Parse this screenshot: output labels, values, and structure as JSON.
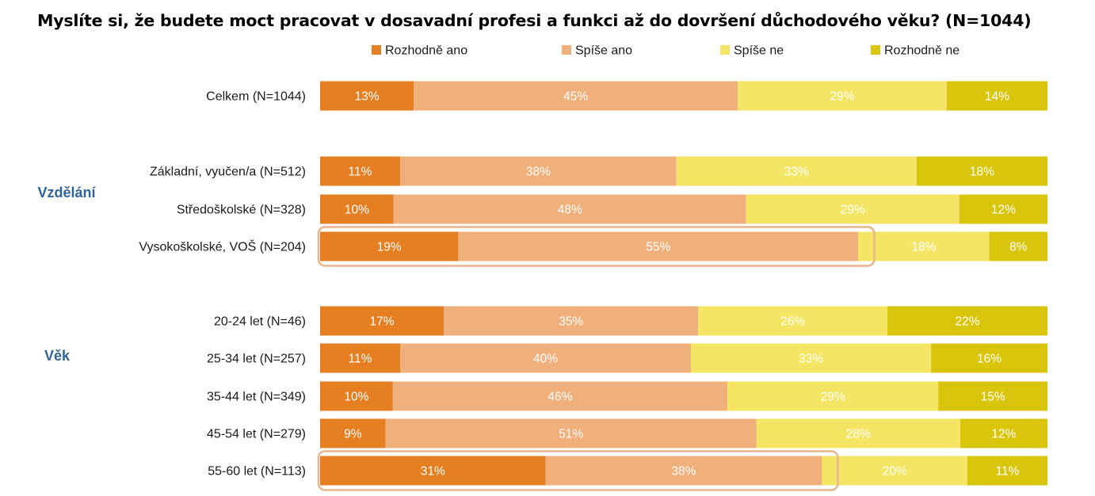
{
  "chart_data": {
    "type": "bar",
    "orientation": "horizontal",
    "stacked": true,
    "percent_stacked": true,
    "title": "Myslíte si, že budete moct pracovat v dosavadní profesi a funkci až do dovršení důchodového věku? (N=1044)",
    "legend_position": "top",
    "grid": false,
    "categories": [
      "Celkem (N=1044)",
      "Základní, vyučen/a (N=512)",
      "Středoškolské (N=328)",
      "Vysokoškolské, VOŠ (N=204)",
      "20-24 let (N=46)",
      "25-34 let (N=257)",
      "35-44 let (N=349)",
      "45-54 let (N=279)",
      "55-60 let (N=113)"
    ],
    "groups": [
      {
        "label": "Vzdělání",
        "categories": [
          1,
          2,
          3
        ]
      },
      {
        "label": "Věk",
        "categories": [
          4,
          5,
          6,
          7,
          8
        ]
      }
    ],
    "series": [
      {
        "name": "Rozhodně ano",
        "color": "#e67e22",
        "label_color": "#ffffff",
        "values": [
          13,
          11,
          10,
          19,
          17,
          11,
          10,
          9,
          31
        ]
      },
      {
        "name": "Spíše ano",
        "color": "#f0b07c",
        "label_color": "#ffffff",
        "values": [
          45,
          38,
          48,
          55,
          35,
          40,
          46,
          51,
          38
        ]
      },
      {
        "name": "Spíše ne",
        "color": "#f4e664",
        "label_color": "#ffffff",
        "values": [
          29,
          33,
          29,
          18,
          26,
          33,
          29,
          28,
          20
        ]
      },
      {
        "name": "Rozhodně ne",
        "color": "#d8c50c",
        "label_color": "#ffffff",
        "values": [
          14,
          18,
          12,
          8,
          22,
          16,
          15,
          12,
          11
        ]
      }
    ],
    "value_suffix": "%",
    "highlights": [
      {
        "category": 3,
        "series": [
          0,
          1
        ],
        "color": "#e8b48a"
      },
      {
        "category": 8,
        "series": [
          0,
          1
        ],
        "color": "#e8b48a"
      }
    ]
  }
}
